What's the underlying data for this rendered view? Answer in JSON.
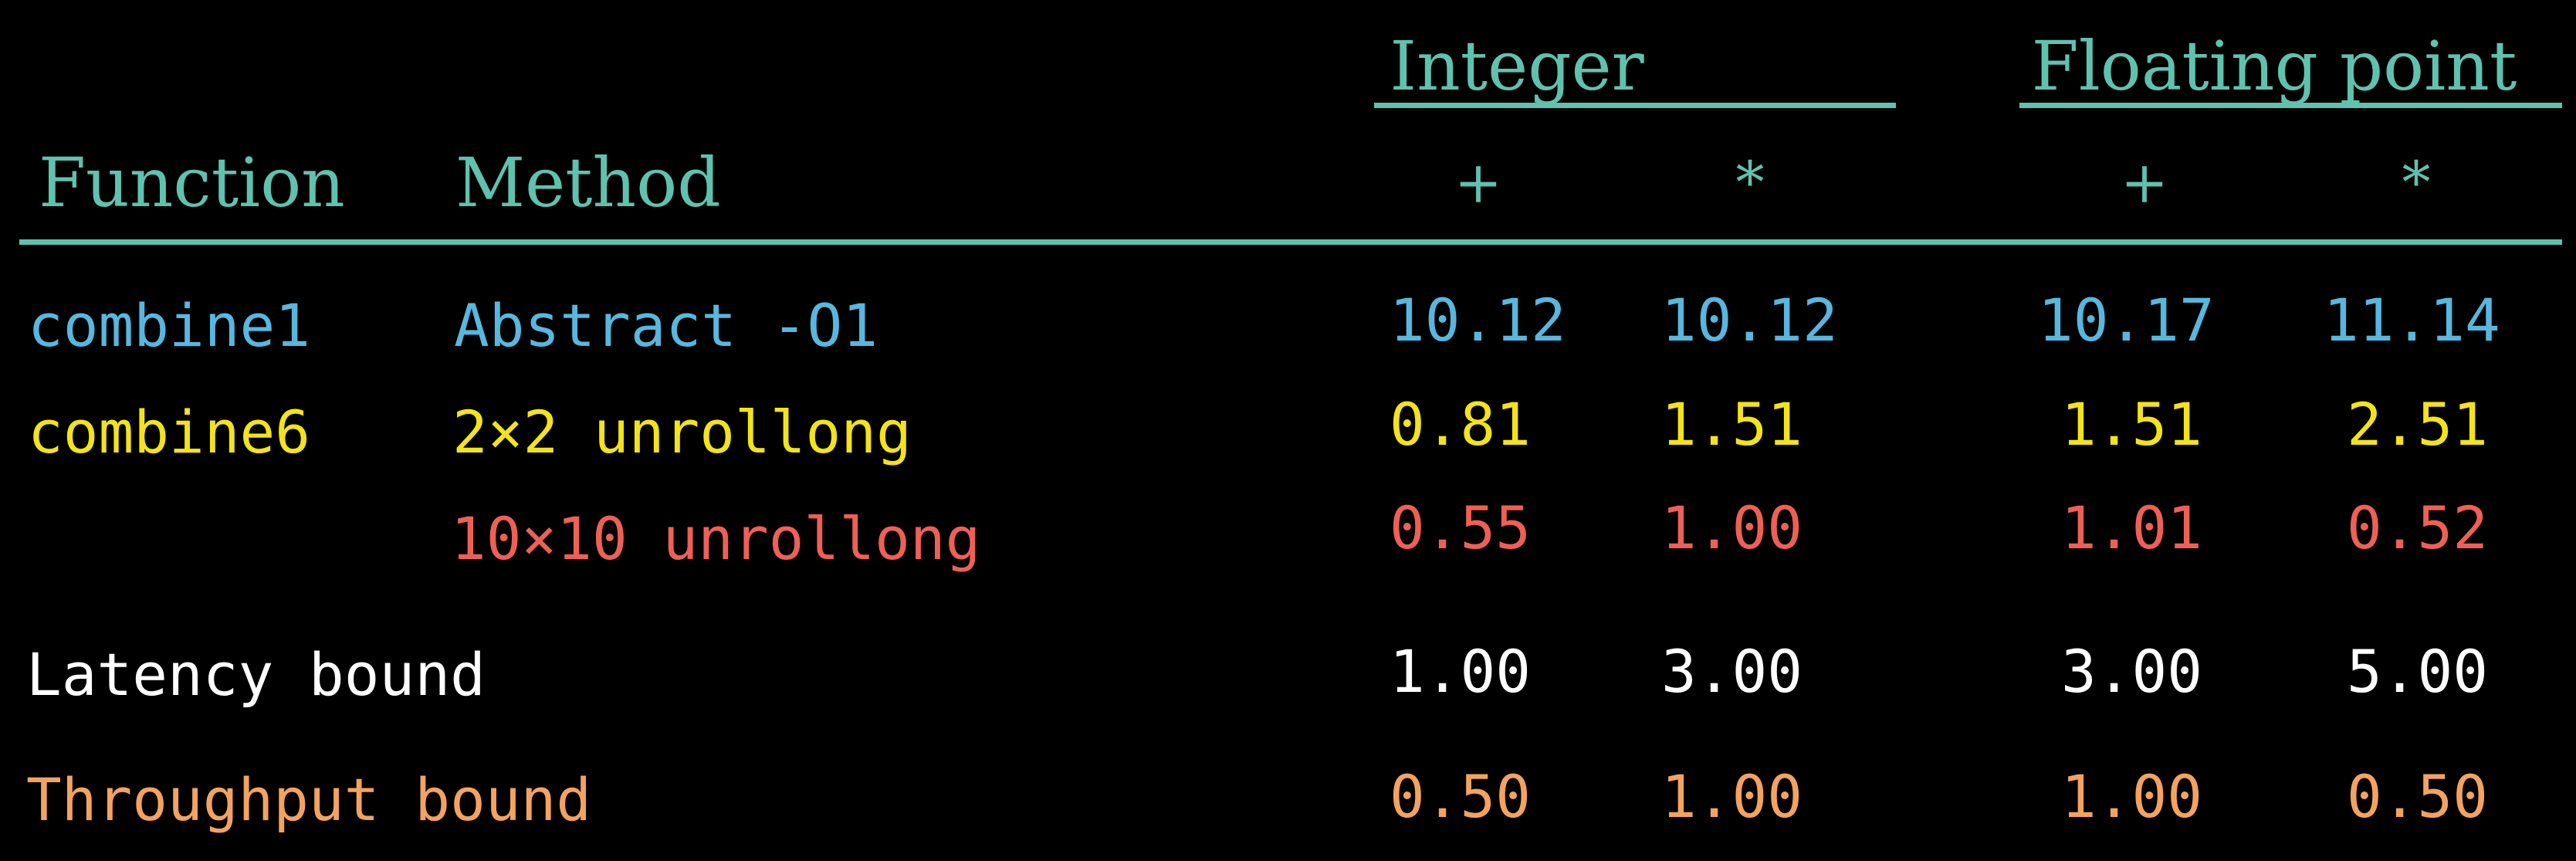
{
  "header": {
    "group_integer": "Integer",
    "group_float": "Floating point",
    "col_function": "Function",
    "col_method": "Method",
    "int_add": "+",
    "int_mul": "*",
    "fp_add": "+",
    "fp_mul": "*"
  },
  "rows": [
    {
      "function": "combine1",
      "method": "Abstract -O1",
      "int_add": "10.12",
      "int_mul": "10.12",
      "fp_add": "10.17",
      "fp_mul": "11.14",
      "color": "#57b7df"
    },
    {
      "function": "combine6",
      "method": "2×2 unrollong",
      "int_add": "0.81",
      "int_mul": "1.51",
      "fp_add": "1.51",
      "fp_mul": "2.51",
      "color": "#f2e31b"
    },
    {
      "function": "",
      "method": "10×10 unrollong",
      "int_add": "0.55",
      "int_mul": "1.00",
      "fp_add": "1.01",
      "fp_mul": "0.52",
      "color": "#ee6055"
    },
    {
      "function": "Latency bound",
      "method": "",
      "int_add": "1.00",
      "int_mul": "3.00",
      "fp_add": "3.00",
      "fp_mul": "5.00",
      "color": "#ffffff"
    },
    {
      "function": "Throughput bound",
      "method": "",
      "int_add": "0.50",
      "int_mul": "1.00",
      "fp_add": "1.00",
      "fp_mul": "0.50",
      "color": "#f3a35f"
    }
  ],
  "colors": {
    "background": "#000000",
    "header": "#5fc2ae"
  }
}
